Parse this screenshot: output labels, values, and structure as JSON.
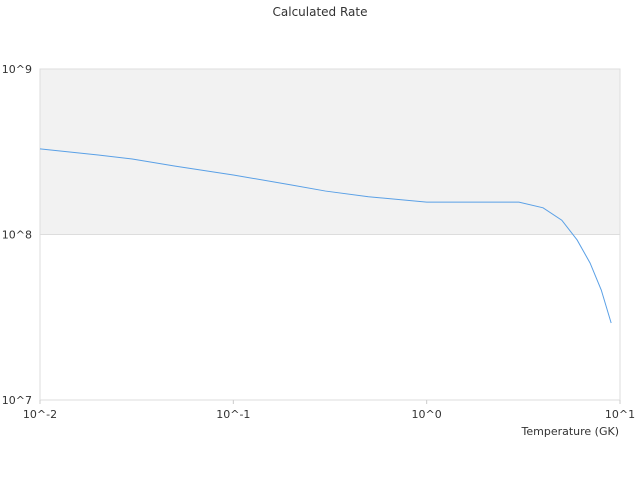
{
  "chart_data": {
    "type": "line",
    "title": "Calculated Rate",
    "xlabel": "Temperature (GK)",
    "xscale": "log",
    "yscale": "log",
    "xlim": [
      0.01,
      10
    ],
    "ylim": [
      10000000,
      1000000000
    ],
    "xticks": [
      {
        "value": 0.01,
        "label": "10^-2"
      },
      {
        "value": 0.1,
        "label": "10^-1"
      },
      {
        "value": 1,
        "label": "10^0"
      },
      {
        "value": 10,
        "label": "10^1"
      }
    ],
    "yticks": [
      {
        "value": 10000000,
        "label": "10^7"
      },
      {
        "value": 100000000,
        "label": "10^8"
      },
      {
        "value": 1000000000,
        "label": "10^9"
      }
    ],
    "bands": true,
    "x": [
      0.01,
      0.02,
      0.03,
      0.05,
      0.1,
      0.2,
      0.3,
      0.5,
      1,
      2,
      3,
      4,
      5,
      6,
      7,
      8,
      9
    ],
    "series": [
      {
        "color": "#5aa0e6",
        "values": [
          329000000,
          302000000,
          286000000,
          259000000,
          229000000,
          199000000,
          183000000,
          169000000,
          157000000,
          157000000,
          157000000,
          145000000,
          122000000,
          92700000,
          67300000,
          46200000,
          29200000
        ]
      }
    ]
  }
}
